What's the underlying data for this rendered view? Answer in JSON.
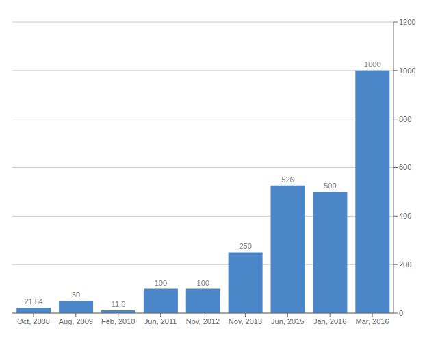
{
  "chart_data": {
    "type": "bar",
    "categories": [
      "Oct, 2008",
      "Aug, 2009",
      "Feb, 2010",
      "Jun, 2011",
      "Nov, 2012",
      "Nov, 2013",
      "Jun, 2015",
      "Jan, 2016",
      "Mar, 2016"
    ],
    "values": [
      21.64,
      50,
      11.6,
      100,
      100,
      250,
      526,
      500,
      1000
    ],
    "value_labels": [
      "21,64",
      "50",
      "11,6",
      "100",
      "100",
      "250",
      "526",
      "500",
      "1000"
    ],
    "color": "#4a86c8",
    "ylim": [
      0,
      1200
    ],
    "yticks": [
      0,
      200,
      400,
      600,
      800,
      1000,
      1200
    ],
    "grid": true,
    "data_labels": true
  }
}
